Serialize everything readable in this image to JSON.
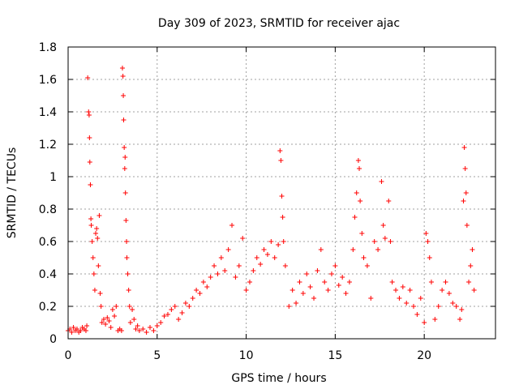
{
  "chart_data": {
    "type": "scatter",
    "title": "Day 309 of 2023, SRMTID for receiver ajac",
    "xlabel": "GPS time / hours",
    "ylabel": "SRMTID / TECUs",
    "xlim": [
      0,
      24
    ],
    "ylim": [
      0,
      1.8
    ],
    "xticks": [
      0,
      5,
      10,
      15,
      20
    ],
    "yticks": [
      0,
      0.2,
      0.4,
      0.6,
      0.8,
      1,
      1.2,
      1.4,
      1.6,
      1.8
    ],
    "xtick_labels": [
      "0",
      "5",
      "10",
      "15",
      "20"
    ],
    "ytick_labels": [
      "0",
      "0.2",
      "0.4",
      "0.6",
      "0.8",
      "1",
      "1.2",
      "1.4",
      "1.6",
      "1.8"
    ],
    "grid": true,
    "marker": "+",
    "color": "#ff0000",
    "series": [
      {
        "name": "ajac",
        "points": [
          [
            0.0,
            0.05
          ],
          [
            0.1,
            0.06
          ],
          [
            0.2,
            0.04
          ],
          [
            0.3,
            0.07
          ],
          [
            0.4,
            0.05
          ],
          [
            0.5,
            0.06
          ],
          [
            0.6,
            0.04
          ],
          [
            0.7,
            0.05
          ],
          [
            0.8,
            0.07
          ],
          [
            0.9,
            0.06
          ],
          [
            1.0,
            0.05
          ],
          [
            1.05,
            0.08
          ],
          [
            1.1,
            1.61
          ],
          [
            1.15,
            1.4
          ],
          [
            1.18,
            1.38
          ],
          [
            1.2,
            1.24
          ],
          [
            1.22,
            1.09
          ],
          [
            1.25,
            0.95
          ],
          [
            1.28,
            0.74
          ],
          [
            1.3,
            0.7
          ],
          [
            1.35,
            0.6
          ],
          [
            1.4,
            0.5
          ],
          [
            1.45,
            0.4
          ],
          [
            1.5,
            0.3
          ],
          [
            1.55,
            0.65
          ],
          [
            1.6,
            0.68
          ],
          [
            1.65,
            0.62
          ],
          [
            1.7,
            0.45
          ],
          [
            1.75,
            0.76
          ],
          [
            1.8,
            0.28
          ],
          [
            1.85,
            0.2
          ],
          [
            1.9,
            0.1
          ],
          [
            2.0,
            0.12
          ],
          [
            2.1,
            0.09
          ],
          [
            2.2,
            0.13
          ],
          [
            2.3,
            0.11
          ],
          [
            2.4,
            0.07
          ],
          [
            2.5,
            0.18
          ],
          [
            2.6,
            0.14
          ],
          [
            2.7,
            0.2
          ],
          [
            2.8,
            0.05
          ],
          [
            2.9,
            0.06
          ],
          [
            3.0,
            0.05
          ],
          [
            3.05,
            1.67
          ],
          [
            3.08,
            1.62
          ],
          [
            3.1,
            1.5
          ],
          [
            3.12,
            1.35
          ],
          [
            3.15,
            1.18
          ],
          [
            3.18,
            1.05
          ],
          [
            3.2,
            1.12
          ],
          [
            3.22,
            0.9
          ],
          [
            3.25,
            0.73
          ],
          [
            3.28,
            0.6
          ],
          [
            3.3,
            0.5
          ],
          [
            3.35,
            0.4
          ],
          [
            3.4,
            0.3
          ],
          [
            3.45,
            0.2
          ],
          [
            3.5,
            0.1
          ],
          [
            3.6,
            0.18
          ],
          [
            3.7,
            0.12
          ],
          [
            3.8,
            0.06
          ],
          [
            3.9,
            0.08
          ],
          [
            4.0,
            0.05
          ],
          [
            4.2,
            0.06
          ],
          [
            4.4,
            0.04
          ],
          [
            4.6,
            0.07
          ],
          [
            4.8,
            0.05
          ],
          [
            5.0,
            0.08
          ],
          [
            5.2,
            0.1
          ],
          [
            5.4,
            0.14
          ],
          [
            5.6,
            0.15
          ],
          [
            5.8,
            0.18
          ],
          [
            6.0,
            0.2
          ],
          [
            6.2,
            0.12
          ],
          [
            6.4,
            0.16
          ],
          [
            6.6,
            0.22
          ],
          [
            6.8,
            0.2
          ],
          [
            7.0,
            0.25
          ],
          [
            7.2,
            0.3
          ],
          [
            7.4,
            0.28
          ],
          [
            7.6,
            0.35
          ],
          [
            7.8,
            0.32
          ],
          [
            8.0,
            0.38
          ],
          [
            8.2,
            0.45
          ],
          [
            8.4,
            0.4
          ],
          [
            8.6,
            0.5
          ],
          [
            8.8,
            0.42
          ],
          [
            9.0,
            0.55
          ],
          [
            9.2,
            0.7
          ],
          [
            9.4,
            0.38
          ],
          [
            9.6,
            0.45
          ],
          [
            9.8,
            0.62
          ],
          [
            10.0,
            0.3
          ],
          [
            10.2,
            0.35
          ],
          [
            10.4,
            0.42
          ],
          [
            10.6,
            0.5
          ],
          [
            10.8,
            0.46
          ],
          [
            11.0,
            0.55
          ],
          [
            11.2,
            0.52
          ],
          [
            11.4,
            0.6
          ],
          [
            11.6,
            0.5
          ],
          [
            11.8,
            0.58
          ],
          [
            11.9,
            1.16
          ],
          [
            11.95,
            1.1
          ],
          [
            12.0,
            0.88
          ],
          [
            12.05,
            0.75
          ],
          [
            12.1,
            0.6
          ],
          [
            12.2,
            0.45
          ],
          [
            12.4,
            0.2
          ],
          [
            12.6,
            0.3
          ],
          [
            12.8,
            0.22
          ],
          [
            13.0,
            0.35
          ],
          [
            13.2,
            0.28
          ],
          [
            13.4,
            0.4
          ],
          [
            13.6,
            0.32
          ],
          [
            13.8,
            0.25
          ],
          [
            14.0,
            0.42
          ],
          [
            14.2,
            0.55
          ],
          [
            14.4,
            0.35
          ],
          [
            14.6,
            0.3
          ],
          [
            14.8,
            0.4
          ],
          [
            15.0,
            0.45
          ],
          [
            15.2,
            0.33
          ],
          [
            15.4,
            0.38
          ],
          [
            15.6,
            0.28
          ],
          [
            15.8,
            0.35
          ],
          [
            16.0,
            0.55
          ],
          [
            16.1,
            0.75
          ],
          [
            16.2,
            0.9
          ],
          [
            16.3,
            1.1
          ],
          [
            16.35,
            1.05
          ],
          [
            16.4,
            0.85
          ],
          [
            16.5,
            0.65
          ],
          [
            16.6,
            0.5
          ],
          [
            16.8,
            0.45
          ],
          [
            17.0,
            0.25
          ],
          [
            17.2,
            0.6
          ],
          [
            17.4,
            0.55
          ],
          [
            17.6,
            0.97
          ],
          [
            17.7,
            0.7
          ],
          [
            17.8,
            0.62
          ],
          [
            18.0,
            0.85
          ],
          [
            18.1,
            0.6
          ],
          [
            18.2,
            0.35
          ],
          [
            18.4,
            0.3
          ],
          [
            18.6,
            0.25
          ],
          [
            18.8,
            0.32
          ],
          [
            19.0,
            0.22
          ],
          [
            19.2,
            0.3
          ],
          [
            19.4,
            0.2
          ],
          [
            19.6,
            0.15
          ],
          [
            19.8,
            0.25
          ],
          [
            20.0,
            0.1
          ],
          [
            20.1,
            0.65
          ],
          [
            20.2,
            0.6
          ],
          [
            20.3,
            0.5
          ],
          [
            20.4,
            0.35
          ],
          [
            20.6,
            0.12
          ],
          [
            20.8,
            0.2
          ],
          [
            21.0,
            0.3
          ],
          [
            21.2,
            0.35
          ],
          [
            21.4,
            0.28
          ],
          [
            21.6,
            0.22
          ],
          [
            21.8,
            0.2
          ],
          [
            22.0,
            0.12
          ],
          [
            22.1,
            0.18
          ],
          [
            22.2,
            0.85
          ],
          [
            22.25,
            1.18
          ],
          [
            22.3,
            1.05
          ],
          [
            22.35,
            0.9
          ],
          [
            22.4,
            0.7
          ],
          [
            22.5,
            0.35
          ],
          [
            22.6,
            0.45
          ],
          [
            22.7,
            0.55
          ],
          [
            22.8,
            0.3
          ]
        ]
      }
    ]
  }
}
